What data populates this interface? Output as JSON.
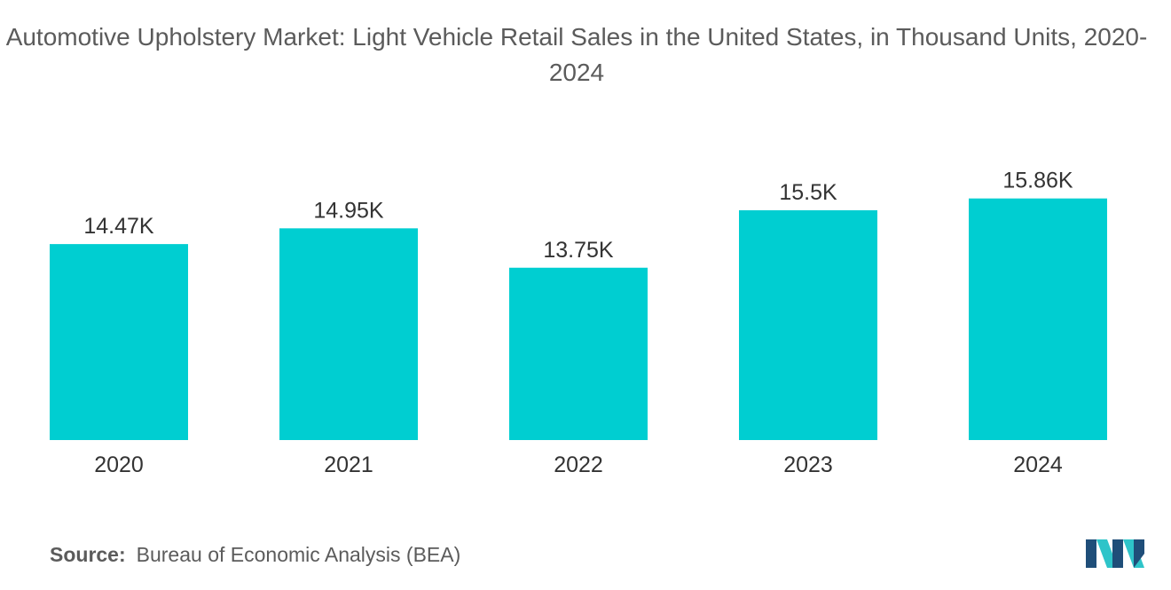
{
  "chart_data": {
    "type": "bar",
    "title": "Automotive Upholstery Market: Light Vehicle Retail Sales in the United States, in Thousand Units, 2020-2024",
    "categories": [
      "2020",
      "2021",
      "2022",
      "2023",
      "2024"
    ],
    "values": [
      14.47,
      14.95,
      13.75,
      15.5,
      15.86
    ],
    "value_labels": [
      "14.47K",
      "14.95K",
      "13.75K",
      "15.5K",
      "15.86K"
    ],
    "xlabel": "",
    "ylabel": "",
    "ylim": [
      0,
      17
    ],
    "grid": false,
    "legend": "none",
    "bar_color": "#00CED1"
  },
  "source": {
    "label": "Source:",
    "text": "Bureau of Economic Analysis (BEA)"
  },
  "logo": {
    "icon": "mordor-intelligence-logo-icon",
    "colors": [
      "#1f4e79",
      "#2ec4c9"
    ]
  }
}
